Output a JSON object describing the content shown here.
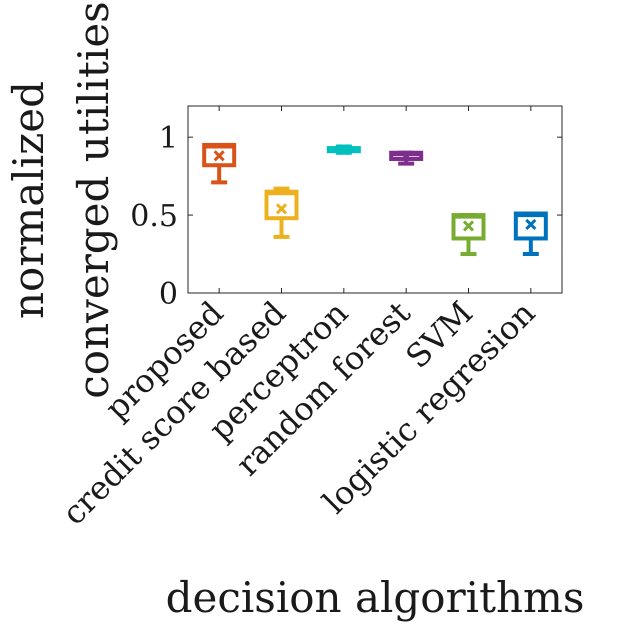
{
  "chart_data": {
    "type": "box",
    "title": "",
    "xlabel": "decision algorithms",
    "ylabel": [
      "normalized",
      "converged utilities"
    ],
    "ylim": [
      0,
      1.2
    ],
    "yticks": [
      0,
      0.5,
      1
    ],
    "ytick_labels": [
      "0",
      "0.5",
      "1"
    ],
    "grid": false,
    "categories": [
      "proposed",
      "credit score based",
      "perceptron",
      "random forest",
      "SVM",
      "logistic regresion"
    ],
    "boxes": [
      {
        "category": "proposed",
        "min": 0.71,
        "q1": 0.82,
        "median": 0.94,
        "q3": 0.95,
        "max": 0.95,
        "mean": 0.88,
        "color": "#d95319"
      },
      {
        "category": "credit score based",
        "min": 0.36,
        "q1": 0.48,
        "median": 0.64,
        "q3": 0.65,
        "max": 0.67,
        "mean": 0.54,
        "color": "#edb120"
      },
      {
        "category": "perceptron",
        "min": 0.9,
        "q1": 0.91,
        "median": 0.92,
        "q3": 0.93,
        "max": 0.94,
        "mean": 0.92,
        "color": "#00bfbf"
      },
      {
        "category": "random forest",
        "min": 0.83,
        "q1": 0.86,
        "median": 0.89,
        "q3": 0.9,
        "max": 0.9,
        "mean": 0.88,
        "color": "#7e2f8e"
      },
      {
        "category": "SVM",
        "min": 0.25,
        "q1": 0.35,
        "median": 0.49,
        "q3": 0.5,
        "max": 0.5,
        "mean": 0.43,
        "color": "#77ac30"
      },
      {
        "category": "logistic regresion",
        "min": 0.25,
        "q1": 0.35,
        "median": 0.5,
        "q3": 0.51,
        "max": 0.51,
        "mean": 0.44,
        "color": "#0072bd"
      }
    ]
  }
}
